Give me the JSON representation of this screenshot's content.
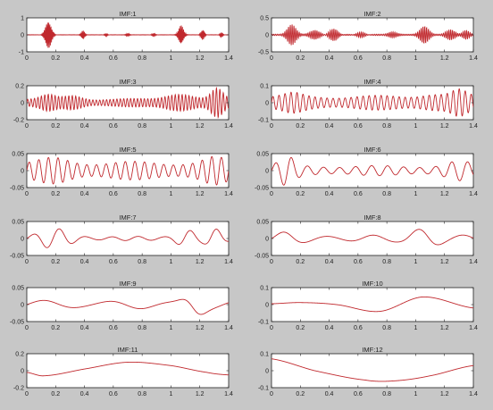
{
  "figure": {
    "background": "#c7c7c7",
    "axes_background": "#ffffff",
    "line_color": "#c0282d"
  },
  "chart_data": [
    {
      "type": "line",
      "title": "IMF:1",
      "xlim": [
        0,
        1.4
      ],
      "ylim": [
        -1,
        1
      ],
      "yticks": [
        "1",
        "0",
        "-1"
      ],
      "xticks": [
        "0",
        "0.2",
        "0.4",
        "0.6",
        "0.8",
        "1",
        "1.2",
        "1.4"
      ],
      "signal": {
        "kind": "bursts",
        "bursts": [
          [
            0.15,
            0.02,
            0.8,
            130
          ],
          [
            0.39,
            0.012,
            0.25,
            130
          ],
          [
            0.55,
            0.01,
            0.1,
            130
          ],
          [
            0.7,
            0.01,
            0.08,
            130
          ],
          [
            0.88,
            0.012,
            0.1,
            130
          ],
          [
            1.07,
            0.016,
            0.55,
            130
          ],
          [
            1.22,
            0.012,
            0.3,
            130
          ],
          [
            1.35,
            0.01,
            0.15,
            130
          ]
        ],
        "noise": 0.02,
        "freq": 130
      }
    },
    {
      "type": "line",
      "title": "IMF:2",
      "xlim": [
        0,
        1.4
      ],
      "ylim": [
        -0.5,
        0.5
      ],
      "yticks": [
        "0.5",
        "0",
        "-0.5"
      ],
      "xticks": [
        "0",
        "0.2",
        "0.4",
        "0.6",
        "0.8",
        "1",
        "1.2",
        "1.4"
      ],
      "signal": {
        "kind": "bursts",
        "bursts": [
          [
            0.14,
            0.03,
            0.3,
            80
          ],
          [
            0.3,
            0.03,
            0.12,
            80
          ],
          [
            0.43,
            0.03,
            0.2,
            80
          ],
          [
            0.62,
            0.03,
            0.1,
            80
          ],
          [
            0.84,
            0.03,
            0.08,
            80
          ],
          [
            1.06,
            0.03,
            0.25,
            80
          ],
          [
            1.24,
            0.03,
            0.15,
            80
          ],
          [
            1.35,
            0.02,
            0.12,
            80
          ]
        ],
        "noise": 0.04,
        "freq": 80
      }
    },
    {
      "type": "line",
      "title": "IMF:3",
      "xlim": [
        0,
        1.4
      ],
      "ylim": [
        -0.2,
        0.2
      ],
      "yticks": [
        "0.2",
        "0",
        "-0.2"
      ],
      "xticks": [
        "0",
        "0.2",
        "0.4",
        "0.6",
        "0.8",
        "1",
        "1.2",
        "1.4"
      ],
      "signal": {
        "kind": "am",
        "freq": 42,
        "base": 0.04,
        "bumps": [
          [
            0.15,
            0.05,
            0.04
          ],
          [
            0.33,
            0.06,
            0.05
          ],
          [
            1.05,
            0.08,
            0.09
          ],
          [
            1.32,
            0.04,
            0.1
          ]
        ]
      }
    },
    {
      "type": "line",
      "title": "IMF:4",
      "xlim": [
        0,
        1.4
      ],
      "ylim": [
        -0.1,
        0.1
      ],
      "yticks": [
        "0.1",
        "0",
        "-0.1"
      ],
      "xticks": [
        "0",
        "0.2",
        "0.4",
        "0.6",
        "0.8",
        "1",
        "1.2",
        "1.4"
      ],
      "signal": {
        "kind": "am",
        "freq": 24,
        "base": 0.035,
        "bumps": [
          [
            0.15,
            0.06,
            0.015
          ],
          [
            1.1,
            0.08,
            0.02
          ],
          [
            1.3,
            0.05,
            0.03
          ]
        ]
      }
    },
    {
      "type": "line",
      "title": "IMF:5",
      "xlim": [
        0,
        1.4
      ],
      "ylim": [
        -0.05,
        0.05
      ],
      "yticks": [
        "0.05",
        "0",
        "-0.05"
      ],
      "xticks": [
        "0",
        "0.2",
        "0.4",
        "0.6",
        "0.8",
        "1",
        "1.2",
        "1.4"
      ],
      "signal": {
        "kind": "am",
        "freq": 15,
        "base": 0.022,
        "bumps": [
          [
            0.2,
            0.1,
            0.01
          ],
          [
            1.3,
            0.07,
            0.012
          ]
        ]
      }
    },
    {
      "type": "line",
      "title": "IMF:6",
      "xlim": [
        0,
        1.4
      ],
      "ylim": [
        -0.05,
        0.05
      ],
      "yticks": [
        "0.05",
        "0",
        "-0.05"
      ],
      "xticks": [
        "0",
        "0.2",
        "0.4",
        "0.6",
        "0.8",
        "1",
        "1.2",
        "1.4"
      ],
      "signal": {
        "kind": "am",
        "freq": 9,
        "base": 0.012,
        "bumps": [
          [
            0.1,
            0.05,
            0.025
          ],
          [
            1.3,
            0.08,
            0.012
          ]
        ]
      }
    },
    {
      "type": "line",
      "title": "IMF:7",
      "xlim": [
        0,
        1.4
      ],
      "ylim": [
        -0.05,
        0.05
      ],
      "yticks": [
        "0.05",
        "0",
        "-0.05"
      ],
      "xticks": [
        "0",
        "0.2",
        "0.4",
        "0.6",
        "0.8",
        "1",
        "1.2",
        "1.4"
      ],
      "signal": {
        "kind": "am",
        "freq": 5.5,
        "base": 0.005,
        "bumps": [
          [
            0.2,
            0.1,
            0.02
          ],
          [
            1.1,
            0.06,
            0.025
          ],
          [
            1.3,
            0.05,
            0.018
          ]
        ]
      }
    },
    {
      "type": "line",
      "title": "IMF:8",
      "xlim": [
        0,
        1.4
      ],
      "ylim": [
        -0.05,
        0.05
      ],
      "yticks": [
        "0.05",
        "0",
        "-0.05"
      ],
      "xticks": [
        "0",
        "0.2",
        "0.4",
        "0.6",
        "0.8",
        "1",
        "1.2",
        "1.4"
      ],
      "signal": {
        "kind": "am",
        "freq": 3.2,
        "base": 0.008,
        "bumps": [
          [
            1.05,
            0.08,
            0.03
          ],
          [
            0.1,
            0.08,
            0.008
          ]
        ]
      }
    },
    {
      "type": "line",
      "title": "IMF:9",
      "xlim": [
        0,
        1.4
      ],
      "ylim": [
        -0.05,
        0.05
      ],
      "yticks": [
        "0.05",
        "0",
        "-0.05"
      ],
      "xticks": [
        "0",
        "0.2",
        "0.4",
        "0.6",
        "0.8",
        "1",
        "1.2",
        "1.4"
      ],
      "signal": {
        "kind": "am",
        "freq": 2.2,
        "base": 0.01,
        "bumps": [
          [
            1.15,
            0.06,
            0.035
          ]
        ]
      }
    },
    {
      "type": "line",
      "title": "IMF:10",
      "xlim": [
        0,
        1.4
      ],
      "ylim": [
        -0.1,
        0.1
      ],
      "yticks": [
        "0.1",
        "0",
        "-0.1"
      ],
      "xticks": [
        "0",
        "0.2",
        "0.4",
        "0.6",
        "0.8",
        "1",
        "1.2",
        "1.4"
      ],
      "signal": {
        "kind": "curve",
        "points": [
          [
            0,
            0.005
          ],
          [
            0.2,
            0.012
          ],
          [
            0.45,
            0.0
          ],
          [
            0.75,
            -0.04
          ],
          [
            1.05,
            0.045
          ],
          [
            1.4,
            -0.02
          ]
        ]
      }
    },
    {
      "type": "line",
      "title": "IMF:11",
      "xlim": [
        0,
        1.4
      ],
      "ylim": [
        -0.2,
        0.2
      ],
      "yticks": [
        "0.2",
        "0",
        "-0.2"
      ],
      "xticks": [
        "0",
        "0.2",
        "0.4",
        "0.6",
        "0.8",
        "1",
        "1.2",
        "1.4"
      ],
      "signal": {
        "kind": "curve",
        "points": [
          [
            0,
            -0.02
          ],
          [
            0.12,
            -0.06
          ],
          [
            0.4,
            0.02
          ],
          [
            0.7,
            0.1
          ],
          [
            1.0,
            0.06
          ],
          [
            1.25,
            -0.02
          ],
          [
            1.4,
            -0.05
          ]
        ]
      }
    },
    {
      "type": "line",
      "title": "IMF:12",
      "xlim": [
        0,
        1.4
      ],
      "ylim": [
        -0.1,
        0.1
      ],
      "yticks": [
        "0.1",
        "0",
        "-0.1"
      ],
      "xticks": [
        "0",
        "0.2",
        "0.4",
        "0.6",
        "0.8",
        "1",
        "1.2",
        "1.4"
      ],
      "signal": {
        "kind": "curve",
        "points": [
          [
            0,
            0.07
          ],
          [
            0.3,
            0.0
          ],
          [
            0.65,
            -0.055
          ],
          [
            0.85,
            -0.06
          ],
          [
            1.1,
            -0.03
          ],
          [
            1.4,
            0.03
          ]
        ]
      }
    }
  ]
}
